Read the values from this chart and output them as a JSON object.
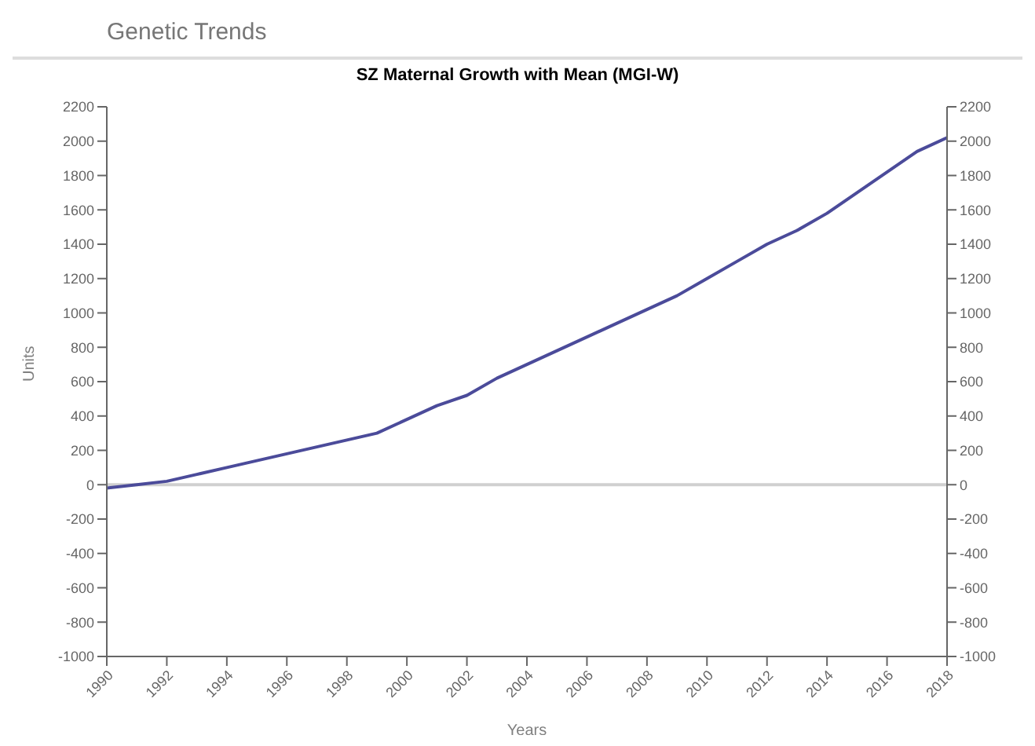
{
  "chart_data": {
    "type": "line",
    "title": "SZ Maternal Growth with Mean (MGI-W)",
    "xlabel": "Years",
    "ylabel": "Units",
    "annotations": [
      "Genetic Trends"
    ],
    "x": [
      1990,
      1991,
      1992,
      1993,
      1994,
      1995,
      1996,
      1997,
      1998,
      1999,
      2000,
      2001,
      2002,
      2003,
      2004,
      2005,
      2006,
      2007,
      2008,
      2009,
      2010,
      2011,
      2012,
      2013,
      2014,
      2015,
      2016,
      2017,
      2018
    ],
    "series": [
      {
        "color": "#4b4b9a",
        "values": [
          -20,
          0,
          20,
          60,
          100,
          140,
          180,
          220,
          260,
          300,
          380,
          460,
          520,
          620,
          700,
          780,
          860,
          940,
          1020,
          1100,
          1200,
          1300,
          1400,
          1480,
          1580,
          1700,
          1820,
          1940,
          2020
        ]
      }
    ],
    "xlim": [
      1990,
      2018
    ],
    "xticks": [
      1990,
      1992,
      1994,
      1996,
      1998,
      2000,
      2002,
      2004,
      2006,
      2008,
      2010,
      2012,
      2014,
      2016,
      2018
    ],
    "ylim": [
      -1000,
      2200
    ],
    "yticks": [
      -1000,
      -800,
      -600,
      -400,
      -200,
      0,
      200,
      400,
      600,
      800,
      1000,
      1200,
      1400,
      1600,
      1800,
      2000,
      2200
    ],
    "y2lim": [
      -1000,
      2200
    ],
    "y2ticks": [
      -1000,
      -800,
      -600,
      -400,
      -200,
      0,
      200,
      400,
      600,
      800,
      1000,
      1200,
      1400,
      1600,
      1800,
      2000,
      2200
    ],
    "ref_lines": [
      {
        "axis": "y",
        "value": 0,
        "color": "#d0d0d0"
      }
    ],
    "grid": false,
    "legend": false,
    "marker": "none",
    "line_style": "solid"
  }
}
